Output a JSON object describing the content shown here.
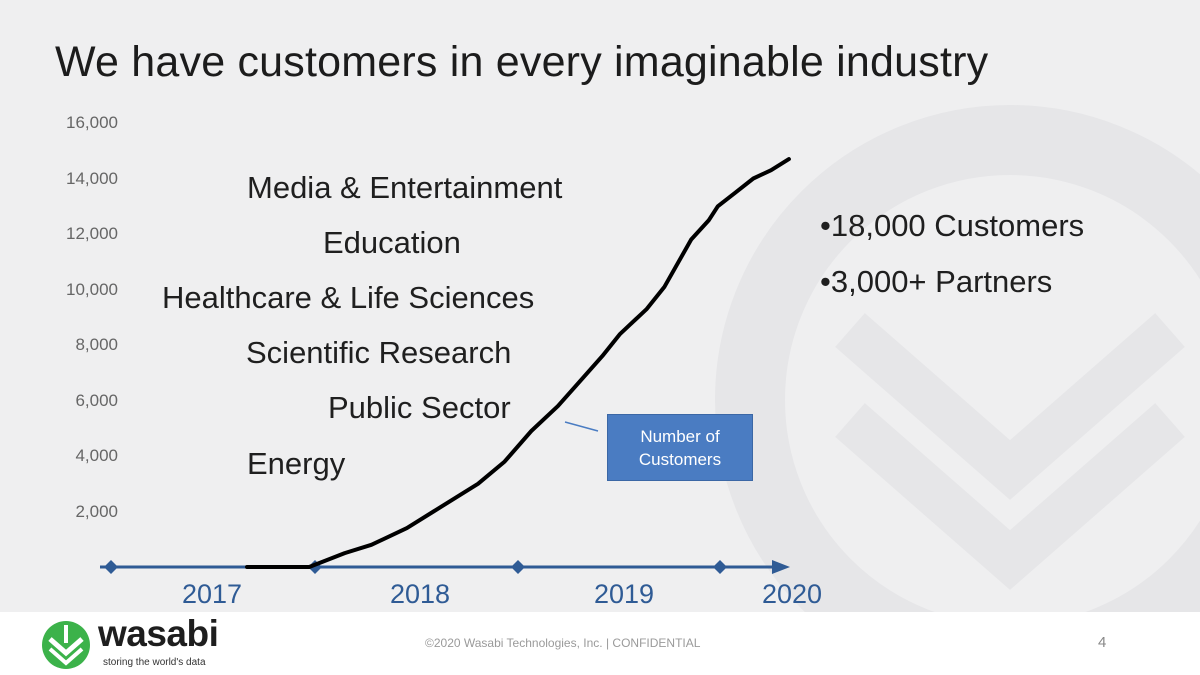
{
  "title": "We have customers in every imaginable industry",
  "industries": [
    "Media & Entertainment",
    "Education",
    "Healthcare & Life Sciences",
    "Scientific Research",
    "Public Sector",
    "Energy"
  ],
  "stats": [
    "•18,000 Customers",
    "•3,000+ Partners"
  ],
  "callout": "Number of Customers",
  "footer": {
    "note": "©2020 Wasabi Technologies, Inc. | CONFIDENTIAL",
    "page": "4",
    "logo_word": "wasabi",
    "logo_tagline": "storing the world's data"
  },
  "colors": {
    "brand_green": "#3cb24a",
    "axis_blue": "#2f5b95",
    "callout_fill": "#4a7cc2",
    "curve": "#000000"
  },
  "chart_data": {
    "type": "line",
    "title": "",
    "xlabel": "",
    "ylabel": "",
    "ylim": [
      0,
      16000
    ],
    "xlim": [
      2017,
      2020
    ],
    "y_ticks": [
      "16,000",
      "14,000",
      "12,000",
      "10,000",
      "8,000",
      "6,000",
      "4,000",
      "2,000"
    ],
    "x_ticks": [
      "2017",
      "2018",
      "2019",
      "2020"
    ],
    "series": [
      {
        "name": "Number of Customers",
        "x": [
          2017.0,
          2017.15,
          2017.35,
          2017.55,
          2017.7,
          2017.9,
          2018.05,
          2018.3,
          2018.45,
          2018.6,
          2018.75,
          2019.0,
          2019.1,
          2019.25,
          2019.35,
          2019.5,
          2019.6,
          2019.65,
          2019.75,
          2019.85,
          2019.95,
          2020.05
        ],
        "y": [
          0,
          0,
          0,
          500,
          800,
          1400,
          2000,
          3000,
          3800,
          4900,
          5800,
          7600,
          8400,
          9300,
          10100,
          11800,
          12500,
          13000,
          13500,
          14000,
          14300,
          14700
        ]
      }
    ]
  }
}
